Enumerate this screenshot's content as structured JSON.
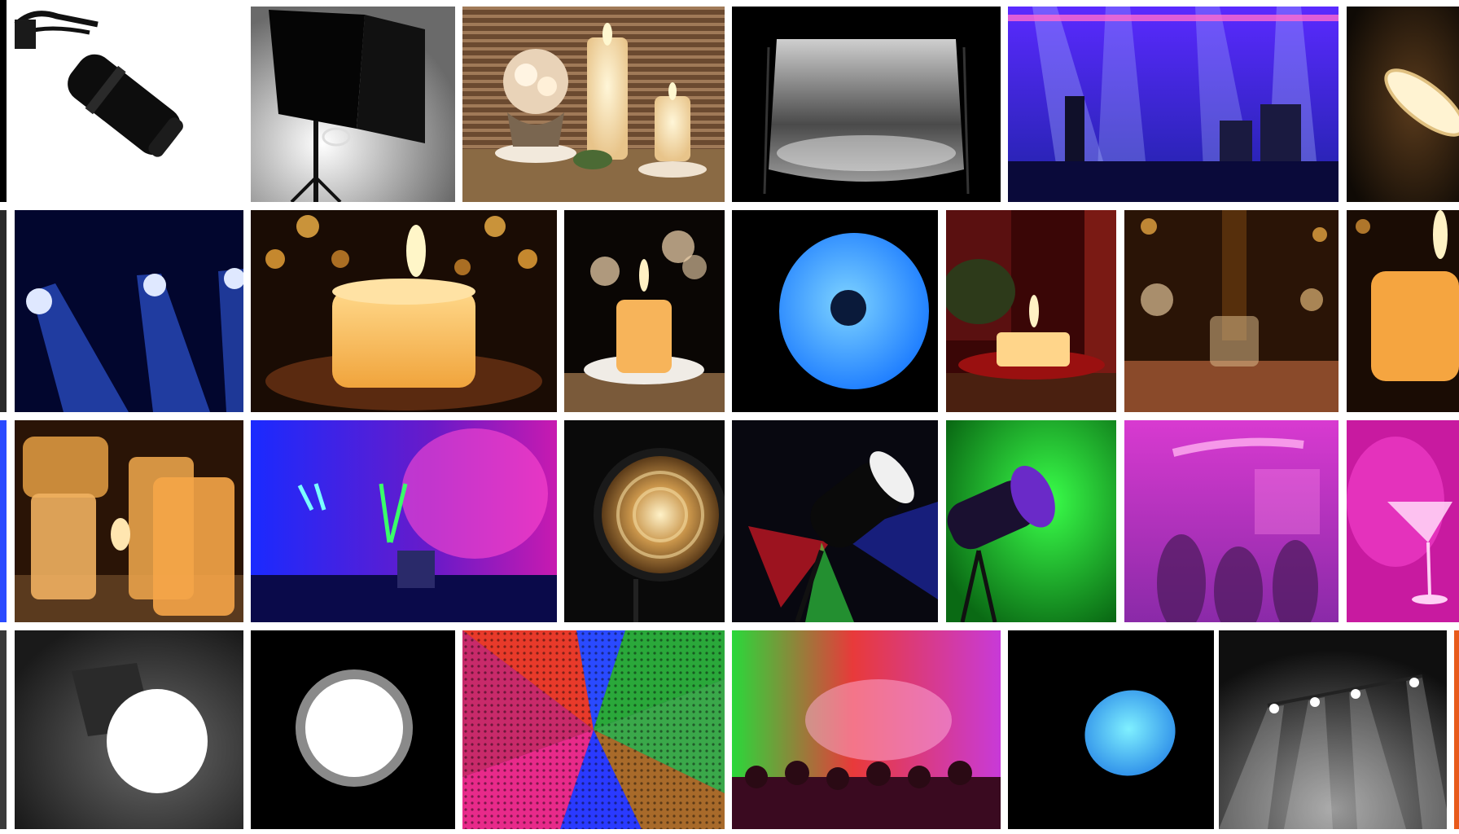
{
  "gallery": {
    "background": "#ffffff",
    "tiles": [
      {
        "id": "spotlight-head",
        "icon": "spotlight-icon"
      },
      {
        "id": "softbox-studio",
        "icon": "softbox-icon"
      },
      {
        "id": "candles-table",
        "icon": "candle-icon"
      },
      {
        "id": "photo-backdrop",
        "icon": "backdrop-icon"
      },
      {
        "id": "concert-stage",
        "icon": "stage-icon"
      },
      {
        "id": "ring-lamp-edge",
        "icon": "lamp-icon"
      },
      {
        "id": "blue-beams",
        "icon": "beam-icon"
      },
      {
        "id": "pillar-candle-bokeh",
        "icon": "candle-icon"
      },
      {
        "id": "small-candle-saucer",
        "icon": "candle-icon"
      },
      {
        "id": "blue-led-disc",
        "icon": "led-panel-icon"
      },
      {
        "id": "red-candle-scene",
        "icon": "candle-icon"
      },
      {
        "id": "bar-glass-bokeh",
        "icon": "glass-icon"
      },
      {
        "id": "amber-pillar-edge",
        "icon": "candle-icon"
      },
      {
        "id": "jar-candles",
        "icon": "candle-icon"
      },
      {
        "id": "club-lasers",
        "icon": "laser-icon"
      },
      {
        "id": "fresnel-lamp",
        "icon": "spotlight-icon"
      },
      {
        "id": "rgb-spotlight",
        "icon": "spotlight-icon"
      },
      {
        "id": "green-projector",
        "icon": "projector-icon"
      },
      {
        "id": "neon-club-crowd",
        "icon": "neon-sign-icon"
      },
      {
        "id": "pink-cocktail",
        "icon": "cocktail-icon"
      },
      {
        "id": "white-light-disc",
        "icon": "light-icon"
      },
      {
        "id": "round-ring-light",
        "icon": "ring-light-icon"
      },
      {
        "id": "led-matrix-wall",
        "icon": "led-wall-icon"
      },
      {
        "id": "festival-crowd",
        "icon": "crowd-icon"
      },
      {
        "id": "cyan-puck-light",
        "icon": "light-icon"
      },
      {
        "id": "grey-stage-spots",
        "icon": "spotlight-icon"
      }
    ]
  }
}
